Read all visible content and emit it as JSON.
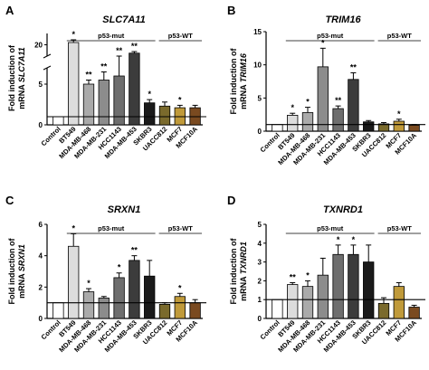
{
  "colors": {
    "control": "#ffffff",
    "bt549": "#dcdcdc",
    "mda468": "#aaaaaa",
    "mda231": "#8c8c8c",
    "hcc1143": "#6e6e6e",
    "mda453": "#3c3c3c",
    "skbr3": "#1a1a1a",
    "uacc812": "#7a6a2c",
    "mcf7": "#c09a3a",
    "mcf10a": "#7a4a20"
  },
  "categories": [
    "Control",
    "BT549",
    "MDA-MB-468",
    "MDA-MB-231",
    "HCC1143",
    "MDA-MB-453",
    "SKBR3",
    "UACC812",
    "MCF7",
    "MCF10A"
  ],
  "groups": {
    "mut": "p53-mut",
    "wt": "p53-WT"
  },
  "chart_data": [
    {
      "type": "bar",
      "panel": "A",
      "title": "SLC7A11",
      "ylabel_line1": "Fold induction of",
      "ylabel_line2_prefix": "mRNA ",
      "ylabel_line2_gene": "SLC7A11",
      "broken_axis": true,
      "lower_ylim": [
        0,
        7
      ],
      "upper_ylim": [
        15,
        25
      ],
      "yticks": [
        0,
        5,
        20
      ],
      "categories": [
        "Control",
        "BT549",
        "MDA-MB-468",
        "MDA-MB-231",
        "HCC1143",
        "MDA-MB-453",
        "SKBR3",
        "UACC812",
        "MCF7",
        "MCF10A"
      ],
      "values": [
        1.0,
        21.0,
        5.0,
        5.5,
        6.0,
        16.3,
        2.7,
        2.3,
        2.1,
        2.1
      ],
      "errors": [
        0,
        1.2,
        0.5,
        1.0,
        1.3,
        0.7,
        0.4,
        0.5,
        0.3,
        0.3
      ],
      "stars": [
        "",
        "*",
        "**",
        "**",
        "**",
        "**",
        "*",
        "",
        "*",
        ""
      ],
      "baseline": 1
    },
    {
      "type": "bar",
      "panel": "B",
      "title": "TRIM16",
      "ylabel_line1": "Fold induction of",
      "ylabel_line2_prefix": "mRNA ",
      "ylabel_line2_gene": "TRIM16",
      "ylim": [
        0,
        15
      ],
      "yticks": [
        0,
        5,
        10,
        15
      ],
      "categories": [
        "Control",
        "BT549",
        "MDA-MB-468",
        "MDA-MB-231",
        "HCC1143",
        "MDA-MB-453",
        "SKBR3",
        "UACC812",
        "MCF7",
        "MCF10A"
      ],
      "values": [
        1.0,
        2.4,
        2.8,
        9.7,
        3.4,
        7.8,
        1.4,
        1.1,
        1.5,
        0.9
      ],
      "errors": [
        0,
        0.3,
        0.8,
        2.8,
        0.4,
        1.0,
        0.2,
        0.2,
        0.3,
        0.1
      ],
      "stars": [
        "",
        "*",
        "*",
        "*",
        "**",
        "**",
        "",
        "",
        "*",
        ""
      ],
      "baseline": 1
    },
    {
      "type": "bar",
      "panel": "C",
      "title": "SRXN1",
      "ylabel_line1": "Fold induction of",
      "ylabel_line2_prefix": "mRNA ",
      "ylabel_line2_gene": "SRXN1",
      "ylim": [
        0,
        6
      ],
      "yticks": [
        0,
        2,
        4,
        6
      ],
      "categories": [
        "Control",
        "BT549",
        "MDA-MB-468",
        "MDA-MB-231",
        "HCC1143",
        "MDA-MB-453",
        "SKBR3",
        "UACC812",
        "MCF7",
        "MCF10A"
      ],
      "values": [
        1.0,
        4.6,
        1.7,
        1.3,
        2.6,
        3.7,
        2.7,
        0.9,
        1.4,
        1.0
      ],
      "errors": [
        0,
        0.8,
        0.2,
        0.1,
        0.3,
        0.3,
        1.0,
        0.1,
        0.2,
        0.2
      ],
      "stars": [
        "",
        "*",
        "*",
        "",
        "*",
        "**",
        "",
        "",
        "*",
        ""
      ],
      "baseline": 1
    },
    {
      "type": "bar",
      "panel": "D",
      "title": "TXNRD1",
      "ylabel_line1": "Fold induction of",
      "ylabel_line2_prefix": "mRNA ",
      "ylabel_line2_gene": "TXNRD1",
      "ylim": [
        0,
        5
      ],
      "yticks": [
        0,
        1,
        2,
        3,
        4,
        5
      ],
      "categories": [
        "Control",
        "BT549",
        "MDA-MB-468",
        "MDA-MB-231",
        "HCC1143",
        "MDA-MB-453",
        "SKBR3",
        "UACC812",
        "MCF7",
        "MCF10A"
      ],
      "values": [
        1.0,
        1.8,
        1.7,
        2.3,
        3.4,
        3.4,
        3.0,
        0.8,
        1.7,
        0.6
      ],
      "errors": [
        0,
        0.1,
        0.3,
        0.9,
        0.5,
        0.5,
        0.9,
        0.3,
        0.2,
        0.1
      ],
      "stars": [
        "",
        "**",
        "*",
        "",
        "*",
        "*",
        "",
        "",
        "",
        ""
      ],
      "baseline": 1
    }
  ]
}
